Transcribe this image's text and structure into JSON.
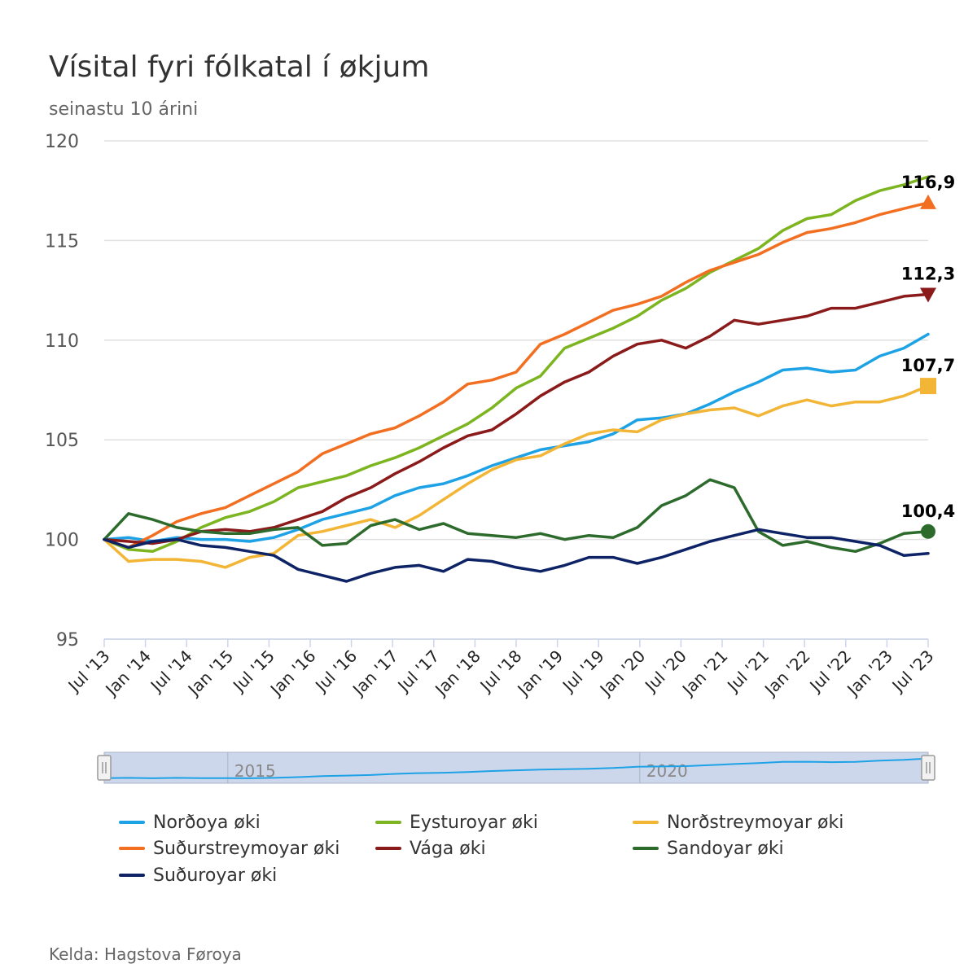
{
  "chart": {
    "title": "Vísital fyri fólkatal í økjum",
    "subtitle": "seinastu 10 árini",
    "credits": "Kelda: Hagstova Føroya",
    "navigator_labels": [
      "2015",
      "2020"
    ]
  },
  "chart_data": {
    "type": "line",
    "title": "Vísital fyri fólkatal í økjum",
    "subtitle": "seinastu 10 árini",
    "xlabel": "",
    "ylabel": "",
    "x_start": "2013-07",
    "x_end": "2023-07",
    "x_tick_labels": [
      "Jul '13",
      "Jan '14",
      "Jul '14",
      "Jan '15",
      "Jul '15",
      "Jan '16",
      "Jul '16",
      "Jan '17",
      "Jul '17",
      "Jan '18",
      "Jul '18",
      "Jan '19",
      "Jul '19",
      "Jan '20",
      "Jul '20",
      "Jan '21",
      "Jul '21",
      "Jan '22",
      "Jul '22",
      "Jan '23",
      "Jul '23"
    ],
    "ylim": [
      95,
      120
    ],
    "y_ticks": [
      95,
      100,
      105,
      110,
      115,
      120
    ],
    "grid": true,
    "legend_position": "bottom",
    "series": [
      {
        "name": "Norðoya øki",
        "color": "#1ea2e6",
        "marker": "none",
        "values": [
          100,
          100.1,
          99.9,
          100.1,
          100,
          100,
          99.9,
          100.1,
          100.5,
          101,
          101.3,
          101.6,
          102.2,
          102.6,
          102.8,
          103.2,
          103.7,
          104.1,
          104.5,
          104.7,
          104.9,
          105.3,
          106,
          106.1,
          106.3,
          106.8,
          107.4,
          107.9,
          108.5,
          108.6,
          108.4,
          108.5,
          109.2,
          109.6,
          110.3
        ]
      },
      {
        "name": "Eysturoyar øki",
        "color": "#7cb520",
        "marker": "none",
        "values": [
          100,
          99.5,
          99.4,
          99.9,
          100.6,
          101.1,
          101.4,
          101.9,
          102.6,
          102.9,
          103.2,
          103.7,
          104.1,
          104.6,
          105.2,
          105.8,
          106.6,
          107.6,
          108.2,
          109.6,
          110.1,
          110.6,
          111.2,
          112,
          112.6,
          113.4,
          114,
          114.6,
          115.5,
          116.1,
          116.3,
          117,
          117.5,
          117.8,
          118.2
        ]
      },
      {
        "name": "Norðstreymoyar øki",
        "color": "#f3b535",
        "marker": "square",
        "label": "107,7",
        "values": [
          100,
          98.9,
          99,
          99,
          98.9,
          98.6,
          99.1,
          99.3,
          100.2,
          100.4,
          100.7,
          101,
          100.6,
          101.2,
          102,
          102.8,
          103.5,
          104,
          104.2,
          104.8,
          105.3,
          105.5,
          105.4,
          106,
          106.3,
          106.5,
          106.6,
          106.2,
          106.7,
          107,
          106.7,
          106.9,
          106.9,
          107.2,
          107.7
        ]
      },
      {
        "name": "Suðurstreymoyar øki",
        "color": "#f26f21",
        "marker": "triangle",
        "label": "116,9",
        "values": [
          100,
          99.6,
          100.2,
          100.9,
          101.3,
          101.6,
          102.2,
          102.8,
          103.4,
          104.3,
          104.8,
          105.3,
          105.6,
          106.2,
          106.9,
          107.8,
          108,
          108.4,
          109.8,
          110.3,
          110.9,
          111.5,
          111.8,
          112.2,
          112.9,
          113.5,
          113.9,
          114.3,
          114.9,
          115.4,
          115.6,
          115.9,
          116.3,
          116.6,
          116.9
        ]
      },
      {
        "name": "Vága øki",
        "color": "#8b1a1a",
        "marker": "triangle-down",
        "label": "112,3",
        "values": [
          100,
          99.9,
          99.8,
          100,
          100.4,
          100.5,
          100.4,
          100.6,
          101,
          101.4,
          102.1,
          102.6,
          103.3,
          103.9,
          104.6,
          105.2,
          105.5,
          106.3,
          107.2,
          107.9,
          108.4,
          109.2,
          109.8,
          110,
          109.6,
          110.2,
          111,
          110.8,
          111,
          111.2,
          111.6,
          111.6,
          111.9,
          112.2,
          112.3
        ]
      },
      {
        "name": "Sandoyar øki",
        "color": "#2d6b2d",
        "marker": "circle",
        "label": "100,4",
        "values": [
          100,
          101.3,
          101,
          100.6,
          100.4,
          100.3,
          100.3,
          100.5,
          100.6,
          99.7,
          99.8,
          100.7,
          101,
          100.5,
          100.8,
          100.3,
          100.2,
          100.1,
          100.3,
          100,
          100.2,
          100.1,
          100.6,
          101.7,
          102.2,
          103,
          102.6,
          100.4,
          99.7,
          99.9,
          99.6,
          99.4,
          99.8,
          100.3,
          100.4
        ]
      },
      {
        "name": "Suðuroyar øki",
        "color": "#0d2366",
        "marker": "none",
        "values": [
          100,
          99.6,
          99.9,
          100,
          99.7,
          99.6,
          99.4,
          99.2,
          98.5,
          98.2,
          97.9,
          98.3,
          98.6,
          98.7,
          98.4,
          99,
          98.9,
          98.6,
          98.4,
          98.7,
          99.1,
          99.1,
          98.8,
          99.1,
          99.5,
          99.9,
          100.2,
          100.5,
          100.3,
          100.1,
          100.1,
          99.9,
          99.7,
          99.2,
          99.3
        ]
      }
    ]
  }
}
